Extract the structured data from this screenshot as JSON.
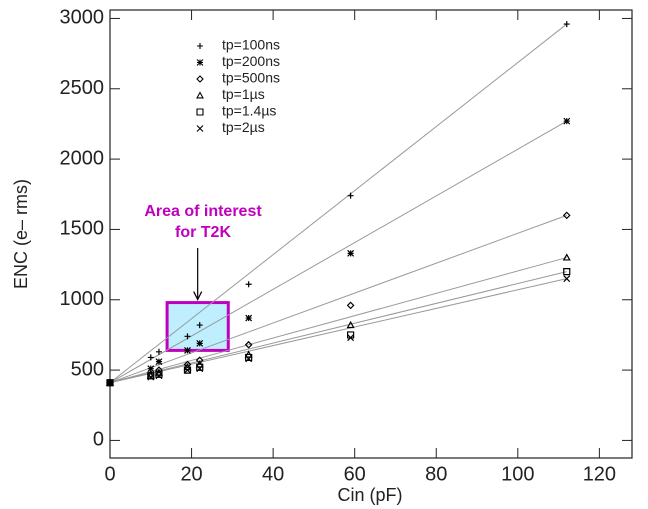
{
  "chart_data": {
    "type": "scatter",
    "x_label": "Cin (pF)",
    "y_label": "ENC (e– rms)",
    "x": [
      0,
      10,
      12,
      19,
      22,
      34,
      59,
      112
    ],
    "series": [
      {
        "name": "tp=100ns",
        "marker": "plus",
        "color": "#000000",
        "values": [
          410,
          590,
          630,
          740,
          820,
          1110,
          1740,
          2960
        ]
      },
      {
        "name": "tp=200ns",
        "marker": "asterisk",
        "color": "#000000",
        "values": [
          410,
          510,
          560,
          640,
          690,
          870,
          1330,
          2270
        ]
      },
      {
        "name": "tp=500ns",
        "marker": "diamond",
        "color": "#000000",
        "values": [
          410,
          470,
          500,
          540,
          570,
          680,
          960,
          1600
        ]
      },
      {
        "name": "tp=1µs",
        "marker": "triangle",
        "color": "#000000",
        "values": [
          410,
          460,
          480,
          520,
          540,
          610,
          820,
          1300
        ]
      },
      {
        "name": "tp=1.4µs",
        "marker": "square",
        "color": "#000000",
        "values": [
          410,
          460,
          470,
          500,
          520,
          590,
          750,
          1200
        ]
      },
      {
        "name": "tp=2µs",
        "marker": "cross",
        "color": "#000000",
        "values": [
          410,
          450,
          460,
          500,
          510,
          580,
          730,
          1150
        ]
      }
    ],
    "xlim": [
      0,
      128
    ],
    "ylim": [
      -125,
      3060
    ],
    "xticks": [
      0,
      20,
      40,
      60,
      80,
      100,
      120
    ],
    "yticks": [
      0,
      500,
      1000,
      1500,
      2000,
      2500,
      3000
    ],
    "annotation": [
      "Area of interest",
      "for T2K"
    ],
    "highlight": {
      "xlim": [
        14,
        29
      ],
      "ylim": [
        640,
        980
      ],
      "color": "#c000c0",
      "fill": "#bfefff"
    }
  }
}
